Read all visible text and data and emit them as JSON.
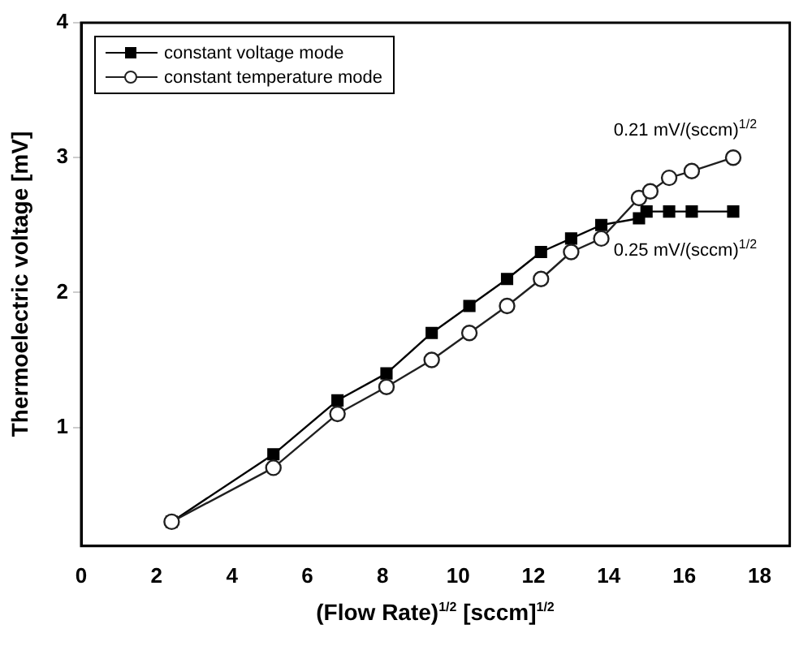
{
  "chart_data": {
    "type": "line",
    "xlabel": "(Flow Rate)$^{1/2}$ [sccm]$^{1/2}$",
    "ylabel": "Thermoelectric voltage [mV]",
    "x": [
      2.4,
      5.1,
      6.8,
      8.1,
      9.3,
      10.3,
      11.3,
      12.2,
      13.0,
      13.8,
      14.8,
      15.1,
      15.6,
      16.2,
      17.3
    ],
    "series": [
      {
        "name": "constant voltage mode",
        "color": "#000000",
        "marker": "square",
        "x": [
          2.4,
          5.1,
          6.8,
          8.1,
          9.3,
          10.3,
          11.3,
          12.2,
          13.0,
          13.8,
          14.8,
          15.0,
          15.6,
          16.2,
          17.3
        ],
        "values": [
          0.3,
          0.8,
          1.2,
          1.4,
          1.7,
          1.9,
          2.1,
          2.3,
          2.4,
          2.5,
          2.55,
          2.6,
          2.6,
          2.6,
          2.6
        ]
      },
      {
        "name": "constant temperature mode",
        "color": "#202020",
        "marker": "circle",
        "values": [
          0.3,
          0.7,
          1.1,
          1.3,
          1.5,
          1.7,
          1.9,
          2.1,
          2.3,
          2.4,
          2.7,
          2.75,
          2.85,
          2.9,
          3.0
        ]
      }
    ],
    "xlim": [
      0,
      18.8
    ],
    "xticks": [
      0,
      2,
      4,
      6,
      8,
      10,
      12,
      14,
      16,
      18
    ],
    "ylim": [
      0.12,
      4
    ],
    "yticks": [
      1,
      2,
      3,
      4
    ],
    "grid": false,
    "legend": "top left",
    "line_style": "solid",
    "annotations": [
      {
        "text": "0.21 mV/(sccm)$^{1/2}$",
        "x": 16.8,
        "y": 3.0
      },
      {
        "text": "0.25 mV/(sccm)$^{1/2}$",
        "x": 16.8,
        "y": 2.6
      }
    ]
  }
}
